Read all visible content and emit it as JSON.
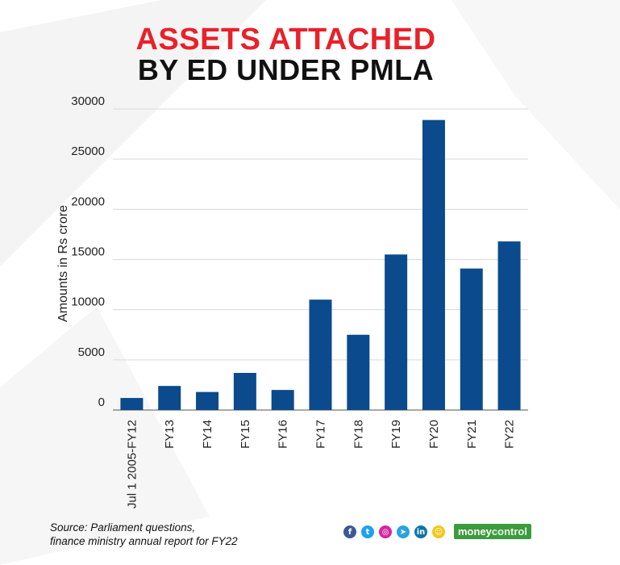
{
  "title_line1": "ASSETS ATTACHED",
  "title_line2": "BY ED UNDER PMLA",
  "source_line1": "Source: Parliament questions,",
  "source_line2": "finance ministry annual report for FY22",
  "social_icons": [
    {
      "name": "facebook-icon",
      "glyph": "f",
      "color": "#3b5998"
    },
    {
      "name": "twitter-icon",
      "glyph": "t",
      "color": "#1da1f2"
    },
    {
      "name": "instagram-icon",
      "glyph": "◎",
      "color": "#d6249f"
    },
    {
      "name": "telegram-icon",
      "glyph": "➤",
      "color": "#2aa3df"
    },
    {
      "name": "linkedin-icon",
      "glyph": "in",
      "color": "#0e76a8"
    },
    {
      "name": "snapchat-icon",
      "glyph": "☺",
      "color": "#f5c518"
    }
  ],
  "brand": {
    "part1": "money",
    "part2": "control"
  },
  "colors": {
    "bar": "#0b4a8c",
    "title_accent": "#e8212a",
    "grid": "#d9d9d9"
  },
  "chart_data": {
    "type": "bar",
    "title": "ASSETS ATTACHED BY ED UNDER PMLA",
    "ylabel": "Amounts in Rs crore",
    "xlabel": "",
    "categories": [
      "Jul 1 2005-FY12",
      "FY13",
      "FY14",
      "FY15",
      "FY16",
      "FY17",
      "FY18",
      "FY19",
      "FY20",
      "FY21",
      "FY22"
    ],
    "values": [
      1200,
      2400,
      1800,
      3700,
      2000,
      11000,
      7500,
      15500,
      28900,
      14100,
      16800
    ],
    "ylim": [
      0,
      30000
    ],
    "yticks": [
      0,
      5000,
      10000,
      15000,
      20000,
      25000,
      30000
    ],
    "grid": true
  }
}
